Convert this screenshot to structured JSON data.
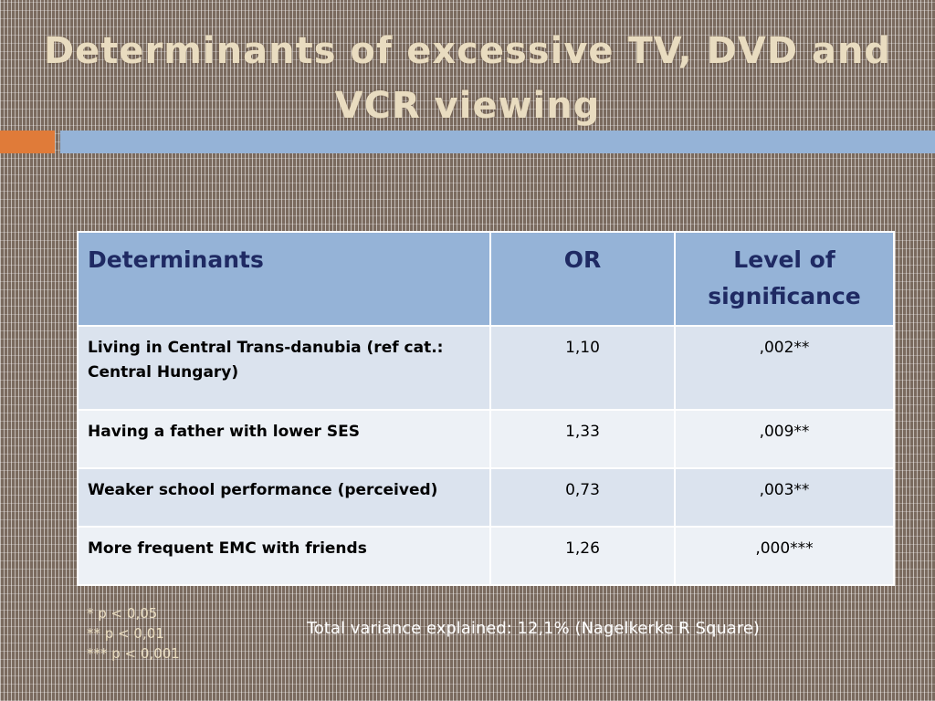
{
  "slide": {
    "title": "Determinants of excessive TV, DVD and VCR viewing",
    "table": {
      "headers": [
        "Determinants",
        "OR",
        "Level of significance"
      ],
      "rows": [
        {
          "determinant": "Living in Central Trans-danubia (ref cat.: Central Hungary)",
          "or": "1,10",
          "significance": ",002**"
        },
        {
          "determinant": "Having a father with lower SES",
          "or": "1,33",
          "significance": ",009**"
        },
        {
          "determinant": "Weaker school performance (perceived)",
          "or": "0,73",
          "significance": ",003**"
        },
        {
          "determinant": "More frequent EMC with friends",
          "or": "1,26",
          "significance": ",000***"
        }
      ]
    },
    "footnotes": [
      "* p < 0,05",
      "** p < 0,01",
      "*** p < 0,001"
    ],
    "variance_note": "Total variance explained: 12,1% (Nagelkerke R Square)"
  },
  "colors": {
    "title": "#e9dcc0",
    "accent_orange": "#e07b39",
    "accent_blue": "#95b3d7",
    "header_bg": "#95b3d7",
    "header_text": "#1f2a63",
    "row_odd": "#dbe3ee",
    "row_even": "#edf1f6"
  }
}
